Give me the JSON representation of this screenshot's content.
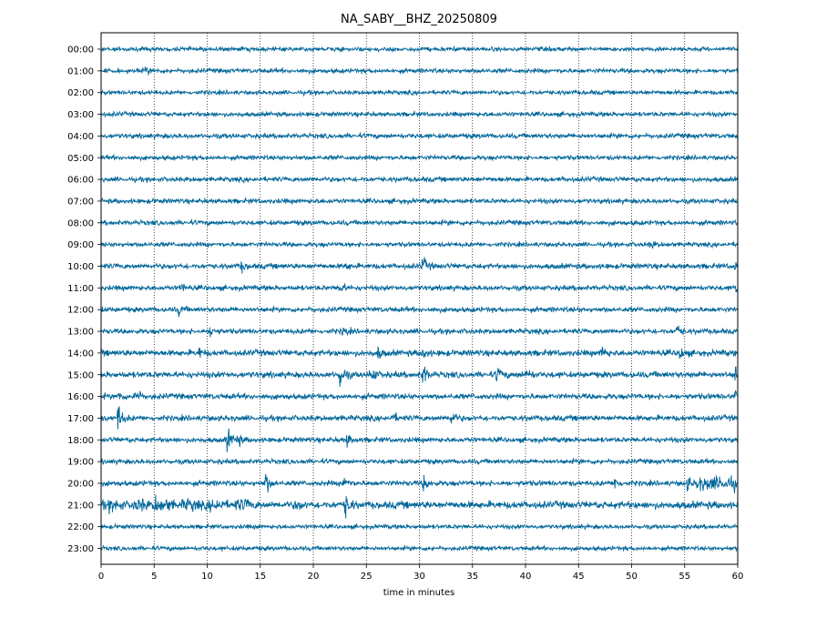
{
  "chart_data": {
    "type": "line",
    "title": "NA_SABY__BHZ_20250809",
    "xlabel": "time in minutes",
    "ylabel": "",
    "xlim": [
      0,
      60
    ],
    "x_ticks": [
      "0",
      "5",
      "10",
      "15",
      "20",
      "25",
      "30",
      "35",
      "40",
      "45",
      "50",
      "55",
      "60"
    ],
    "grid": "vertical dotted lines at every 5 minutes",
    "trace_color": "#006699",
    "rows": [
      {
        "label": "00:00",
        "noise": 3.2,
        "events": []
      },
      {
        "label": "01:00",
        "noise": 3.4,
        "events": [
          {
            "t": 4.2,
            "amp": 5
          }
        ]
      },
      {
        "label": "02:00",
        "noise": 3.2,
        "events": []
      },
      {
        "label": "03:00",
        "noise": 3.4,
        "events": []
      },
      {
        "label": "04:00",
        "noise": 3.6,
        "events": []
      },
      {
        "label": "05:00",
        "noise": 3.4,
        "events": []
      },
      {
        "label": "06:00",
        "noise": 3.6,
        "events": []
      },
      {
        "label": "07:00",
        "noise": 3.6,
        "events": []
      },
      {
        "label": "08:00",
        "noise": 3.6,
        "events": []
      },
      {
        "label": "09:00",
        "noise": 3.4,
        "events": [
          {
            "t": 51.8,
            "amp": 7
          }
        ]
      },
      {
        "label": "10:00",
        "noise": 4.0,
        "events": [
          {
            "t": 13.2,
            "amp": 7
          },
          {
            "t": 23.0,
            "amp": 7
          },
          {
            "t": 30.3,
            "amp": 14
          },
          {
            "t": 59.8,
            "amp": 11
          }
        ]
      },
      {
        "label": "11:00",
        "noise": 3.8,
        "events": [
          {
            "t": 7.5,
            "amp": 7
          },
          {
            "t": 22.5,
            "amp": 9
          },
          {
            "t": 59.8,
            "amp": 10
          }
        ]
      },
      {
        "label": "12:00",
        "noise": 3.8,
        "events": [
          {
            "t": 7.3,
            "amp": 8
          }
        ]
      },
      {
        "label": "13:00",
        "noise": 3.8,
        "events": [
          {
            "t": 10.3,
            "amp": 9
          },
          {
            "t": 22.8,
            "amp": 8
          },
          {
            "t": 54.3,
            "amp": 10
          }
        ]
      },
      {
        "label": "14:00",
        "noise": 4.6,
        "events": [
          {
            "t": 9.2,
            "amp": 8
          },
          {
            "t": 26.1,
            "amp": 8
          },
          {
            "t": 30.3,
            "amp": 9
          },
          {
            "t": 47.2,
            "amp": 12
          },
          {
            "t": 54.5,
            "amp": 10
          }
        ]
      },
      {
        "label": "15:00",
        "noise": 4.6,
        "events": [
          {
            "t": 22.5,
            "amp": 22
          },
          {
            "t": 25.4,
            "amp": 14
          },
          {
            "t": 30.3,
            "amp": 18
          },
          {
            "t": 37.3,
            "amp": 14
          },
          {
            "t": 40.1,
            "amp": 10
          },
          {
            "t": 59.8,
            "amp": 16
          }
        ]
      },
      {
        "label": "16:00",
        "noise": 4.2,
        "events": [
          {
            "t": 3.2,
            "amp": 17
          },
          {
            "t": 1.6,
            "amp": 7
          },
          {
            "t": 59.8,
            "amp": 13
          }
        ]
      },
      {
        "label": "17:00",
        "noise": 4.2,
        "events": [
          {
            "t": 1.6,
            "amp": 22
          },
          {
            "t": 27.5,
            "amp": 7
          },
          {
            "t": 33.0,
            "amp": 12
          }
        ]
      },
      {
        "label": "18:00",
        "noise": 3.8,
        "events": [
          {
            "t": 11.9,
            "amp": 20
          },
          {
            "t": 12.8,
            "amp": 11
          },
          {
            "t": 23.2,
            "amp": 10
          }
        ]
      },
      {
        "label": "19:00",
        "noise": 3.6,
        "events": []
      },
      {
        "label": "20:00",
        "noise": 4.0,
        "events": [
          {
            "t": 15.5,
            "amp": 19
          },
          {
            "t": 22.9,
            "amp": 14
          },
          {
            "t": 30.4,
            "amp": 12
          },
          {
            "t": 48.4,
            "amp": 10
          },
          {
            "t": 55.3,
            "amp": 10
          }
        ]
      },
      {
        "label": "21:00",
        "noise": 5.5,
        "events": [
          {
            "t": 5.0,
            "amp": 14
          },
          {
            "t": 23.0,
            "amp": 20
          },
          {
            "t": 18.4,
            "amp": 8
          }
        ]
      },
      {
        "label": "22:00",
        "noise": 3.2,
        "events": []
      },
      {
        "label": "23:00",
        "noise": 3.2,
        "events": []
      }
    ]
  }
}
